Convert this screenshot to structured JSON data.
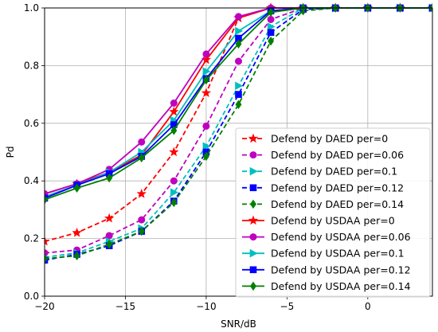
{
  "chart_data": {
    "type": "line",
    "title": "",
    "xlabel": "SNR/dB",
    "ylabel": "Pd",
    "xlim": [
      -20,
      4
    ],
    "ylim": [
      0.0,
      1.0
    ],
    "xticks": [
      -20,
      -15,
      -10,
      -5,
      0
    ],
    "yticks": [
      0.0,
      0.2,
      0.4,
      0.6,
      0.8,
      1.0
    ],
    "xtick_labels": [
      "−20",
      "−15",
      "−10",
      "−5",
      "0"
    ],
    "ytick_labels": [
      "0.0",
      "0.2",
      "0.4",
      "0.6",
      "0.8",
      "1.0"
    ],
    "grid": true,
    "legend_position": "lower-right",
    "x": [
      -20,
      -18,
      -16,
      -14,
      -12,
      -10,
      -8,
      -6,
      -4,
      -2,
      0,
      2,
      4
    ],
    "series": [
      {
        "name": "Defend by DAED per=0",
        "color": "#ff0000",
        "marker": "star",
        "linestyle": "dashed",
        "values": [
          0.19,
          0.22,
          0.27,
          0.355,
          0.5,
          0.705,
          0.965,
          1.0,
          1.0,
          1.0,
          1.0,
          1.0,
          1.0
        ]
      },
      {
        "name": "Defend by DAED per=0.06",
        "color": "#bf00bf",
        "marker": "circle",
        "linestyle": "dashed",
        "values": [
          0.15,
          0.16,
          0.21,
          0.265,
          0.4,
          0.59,
          0.815,
          0.96,
          1.0,
          1.0,
          1.0,
          1.0,
          1.0
        ]
      },
      {
        "name": "Defend by DAED per=0.1",
        "color": "#00bfbf",
        "marker": "triangle-right",
        "linestyle": "dashed",
        "values": [
          0.135,
          0.15,
          0.19,
          0.235,
          0.36,
          0.52,
          0.73,
          0.935,
          1.0,
          1.0,
          1.0,
          1.0,
          1.0
        ]
      },
      {
        "name": "Defend by DAED per=0.12",
        "color": "#0000ff",
        "marker": "square",
        "linestyle": "dashed",
        "values": [
          0.125,
          0.145,
          0.175,
          0.225,
          0.33,
          0.5,
          0.7,
          0.915,
          0.995,
          1.0,
          1.0,
          1.0,
          1.0
        ]
      },
      {
        "name": "Defend by DAED per=0.14",
        "color": "#008000",
        "marker": "diamond",
        "linestyle": "dashed",
        "values": [
          0.13,
          0.14,
          0.18,
          0.225,
          0.325,
          0.485,
          0.665,
          0.885,
          0.99,
          1.0,
          1.0,
          1.0,
          1.0
        ]
      },
      {
        "name": "Defend by USDAA per=0",
        "color": "#ff0000",
        "marker": "star",
        "linestyle": "solid",
        "values": [
          0.355,
          0.39,
          0.43,
          0.49,
          0.64,
          0.82,
          0.965,
          1.0,
          1.0,
          1.0,
          1.0,
          1.0,
          1.0
        ]
      },
      {
        "name": "Defend by USDAA per=0.06",
        "color": "#bf00bf",
        "marker": "circle",
        "linestyle": "solid",
        "values": [
          0.355,
          0.39,
          0.44,
          0.535,
          0.67,
          0.84,
          0.97,
          1.0,
          1.0,
          1.0,
          1.0,
          1.0,
          1.0
        ]
      },
      {
        "name": "Defend by USDAA per=0.1",
        "color": "#00bfbf",
        "marker": "triangle-right",
        "linestyle": "solid",
        "values": [
          0.345,
          0.385,
          0.43,
          0.5,
          0.61,
          0.78,
          0.92,
          0.99,
          1.0,
          1.0,
          1.0,
          1.0,
          1.0
        ]
      },
      {
        "name": "Defend by USDAA per=0.12",
        "color": "#0000ff",
        "marker": "square",
        "linestyle": "solid",
        "values": [
          0.34,
          0.385,
          0.425,
          0.485,
          0.595,
          0.755,
          0.895,
          0.99,
          1.0,
          1.0,
          1.0,
          1.0,
          1.0
        ]
      },
      {
        "name": "Defend by USDAA per=0.14",
        "color": "#008000",
        "marker": "diamond",
        "linestyle": "solid",
        "values": [
          0.335,
          0.375,
          0.41,
          0.48,
          0.575,
          0.75,
          0.875,
          0.985,
          1.0,
          1.0,
          1.0,
          1.0,
          1.0
        ]
      }
    ]
  }
}
